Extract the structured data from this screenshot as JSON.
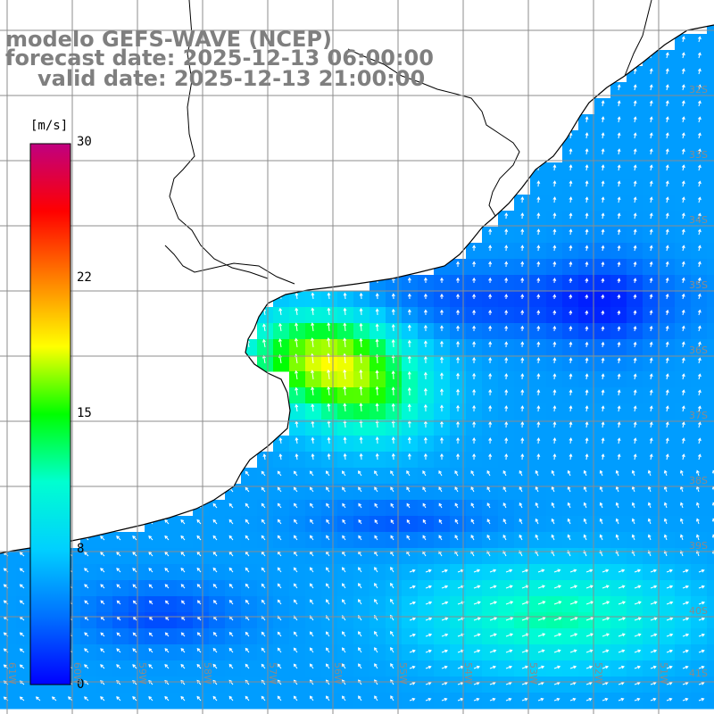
{
  "title": {
    "model": "modelo GEFS-WAVE (NCEP)",
    "forecast": "forecast date: 2025-12-13 06:00:00",
    "valid": "valid date: 2025-12-13 21:00:00"
  },
  "colorbar": {
    "unit": "[m/s]",
    "min": 0,
    "max": 30,
    "ticks": [
      "30",
      "22",
      "15",
      "8",
      "0"
    ],
    "tick_values": [
      30,
      22,
      15,
      8,
      0
    ],
    "stops": [
      "#0000ff",
      "#0070ff",
      "#00d0ff",
      "#00ffd0",
      "#00ff00",
      "#ffff00",
      "#ff8000",
      "#ff0000",
      "#c00080"
    ]
  },
  "latitude_labels": [
    "32S",
    "33S",
    "34S",
    "35S",
    "36S",
    "37S",
    "38S",
    "39S",
    "40S",
    "41S"
  ],
  "longitude_labels": [
    "61W",
    "60W",
    "59W",
    "58W",
    "57W",
    "56W",
    "55W",
    "54W",
    "53W",
    "52W",
    "51W"
  ],
  "colors": {
    "land": "#ffffff",
    "coast": "#000000",
    "grid": "#8c8c8c",
    "arrow": "#ffffff"
  },
  "map_data": {
    "region": "Rio de la Plata / South Atlantic",
    "variable": "wind speed (m/s) with direction arrows",
    "features": [
      "Rio de la Plata estuary high-wind area ~18 m/s",
      "Southeast jet ~12 m/s",
      "Low winds near coast ~2 m/s"
    ]
  }
}
